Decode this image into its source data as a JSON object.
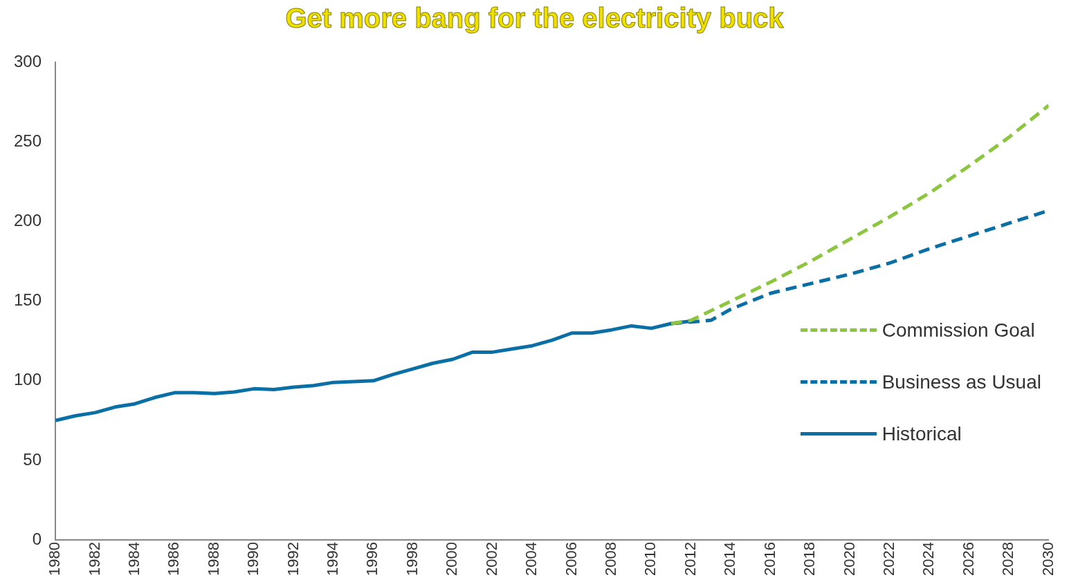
{
  "chart_data": {
    "type": "line",
    "title": "Get more bang for the electricity buck",
    "xlim": [
      1980,
      2030
    ],
    "xticks": [
      1980,
      1982,
      1984,
      1986,
      1988,
      1990,
      1992,
      1994,
      1996,
      1998,
      2000,
      2002,
      2004,
      2006,
      2008,
      2010,
      2012,
      2014,
      2016,
      2018,
      2020,
      2022,
      2024,
      2026,
      2028,
      2030
    ],
    "ylim": [
      0,
      300
    ],
    "yticks": [
      0,
      50,
      100,
      150,
      200,
      250,
      300
    ],
    "grid": false,
    "legend": "right",
    "marker": "none",
    "series": [
      {
        "name": "Commission Goal",
        "color": "#8cc63e",
        "line_style": "dashed",
        "x": [
          2011,
          2012,
          2014,
          2016,
          2018,
          2020,
          2022,
          2024,
          2026,
          2028,
          2030
        ],
        "values": [
          136,
          138,
          150,
          162,
          175,
          189,
          203,
          218,
          235,
          253,
          273
        ]
      },
      {
        "name": "Business as Usual",
        "color": "#0a6fa5",
        "line_style": "dashed",
        "x": [
          2011,
          2012,
          2013,
          2014,
          2016,
          2018,
          2020,
          2022,
          2024,
          2026,
          2028,
          2030
        ],
        "values": [
          136,
          137,
          138,
          145,
          155,
          161,
          167,
          174,
          183,
          191,
          199,
          207
        ]
      },
      {
        "name": "Historical",
        "color": "#0a6fa5",
        "line_style": "solid",
        "x": [
          1980,
          1981,
          1982,
          1983,
          1984,
          1985,
          1986,
          1987,
          1988,
          1989,
          1990,
          1991,
          1992,
          1993,
          1994,
          1995,
          1996,
          1997,
          1998,
          1999,
          2000,
          2001,
          2002,
          2003,
          2004,
          2005,
          2006,
          2007,
          2008,
          2009,
          2010,
          2011,
          2012
        ],
        "values": [
          75,
          78,
          80,
          83.5,
          85.5,
          89.5,
          92.5,
          92.5,
          92,
          93,
          95,
          94.5,
          96,
          97,
          99,
          99.5,
          100,
          104,
          107.5,
          111,
          113.5,
          118,
          118,
          120,
          122,
          125.5,
          130,
          130,
          132,
          134.5,
          133,
          136,
          137.5
        ]
      }
    ]
  }
}
